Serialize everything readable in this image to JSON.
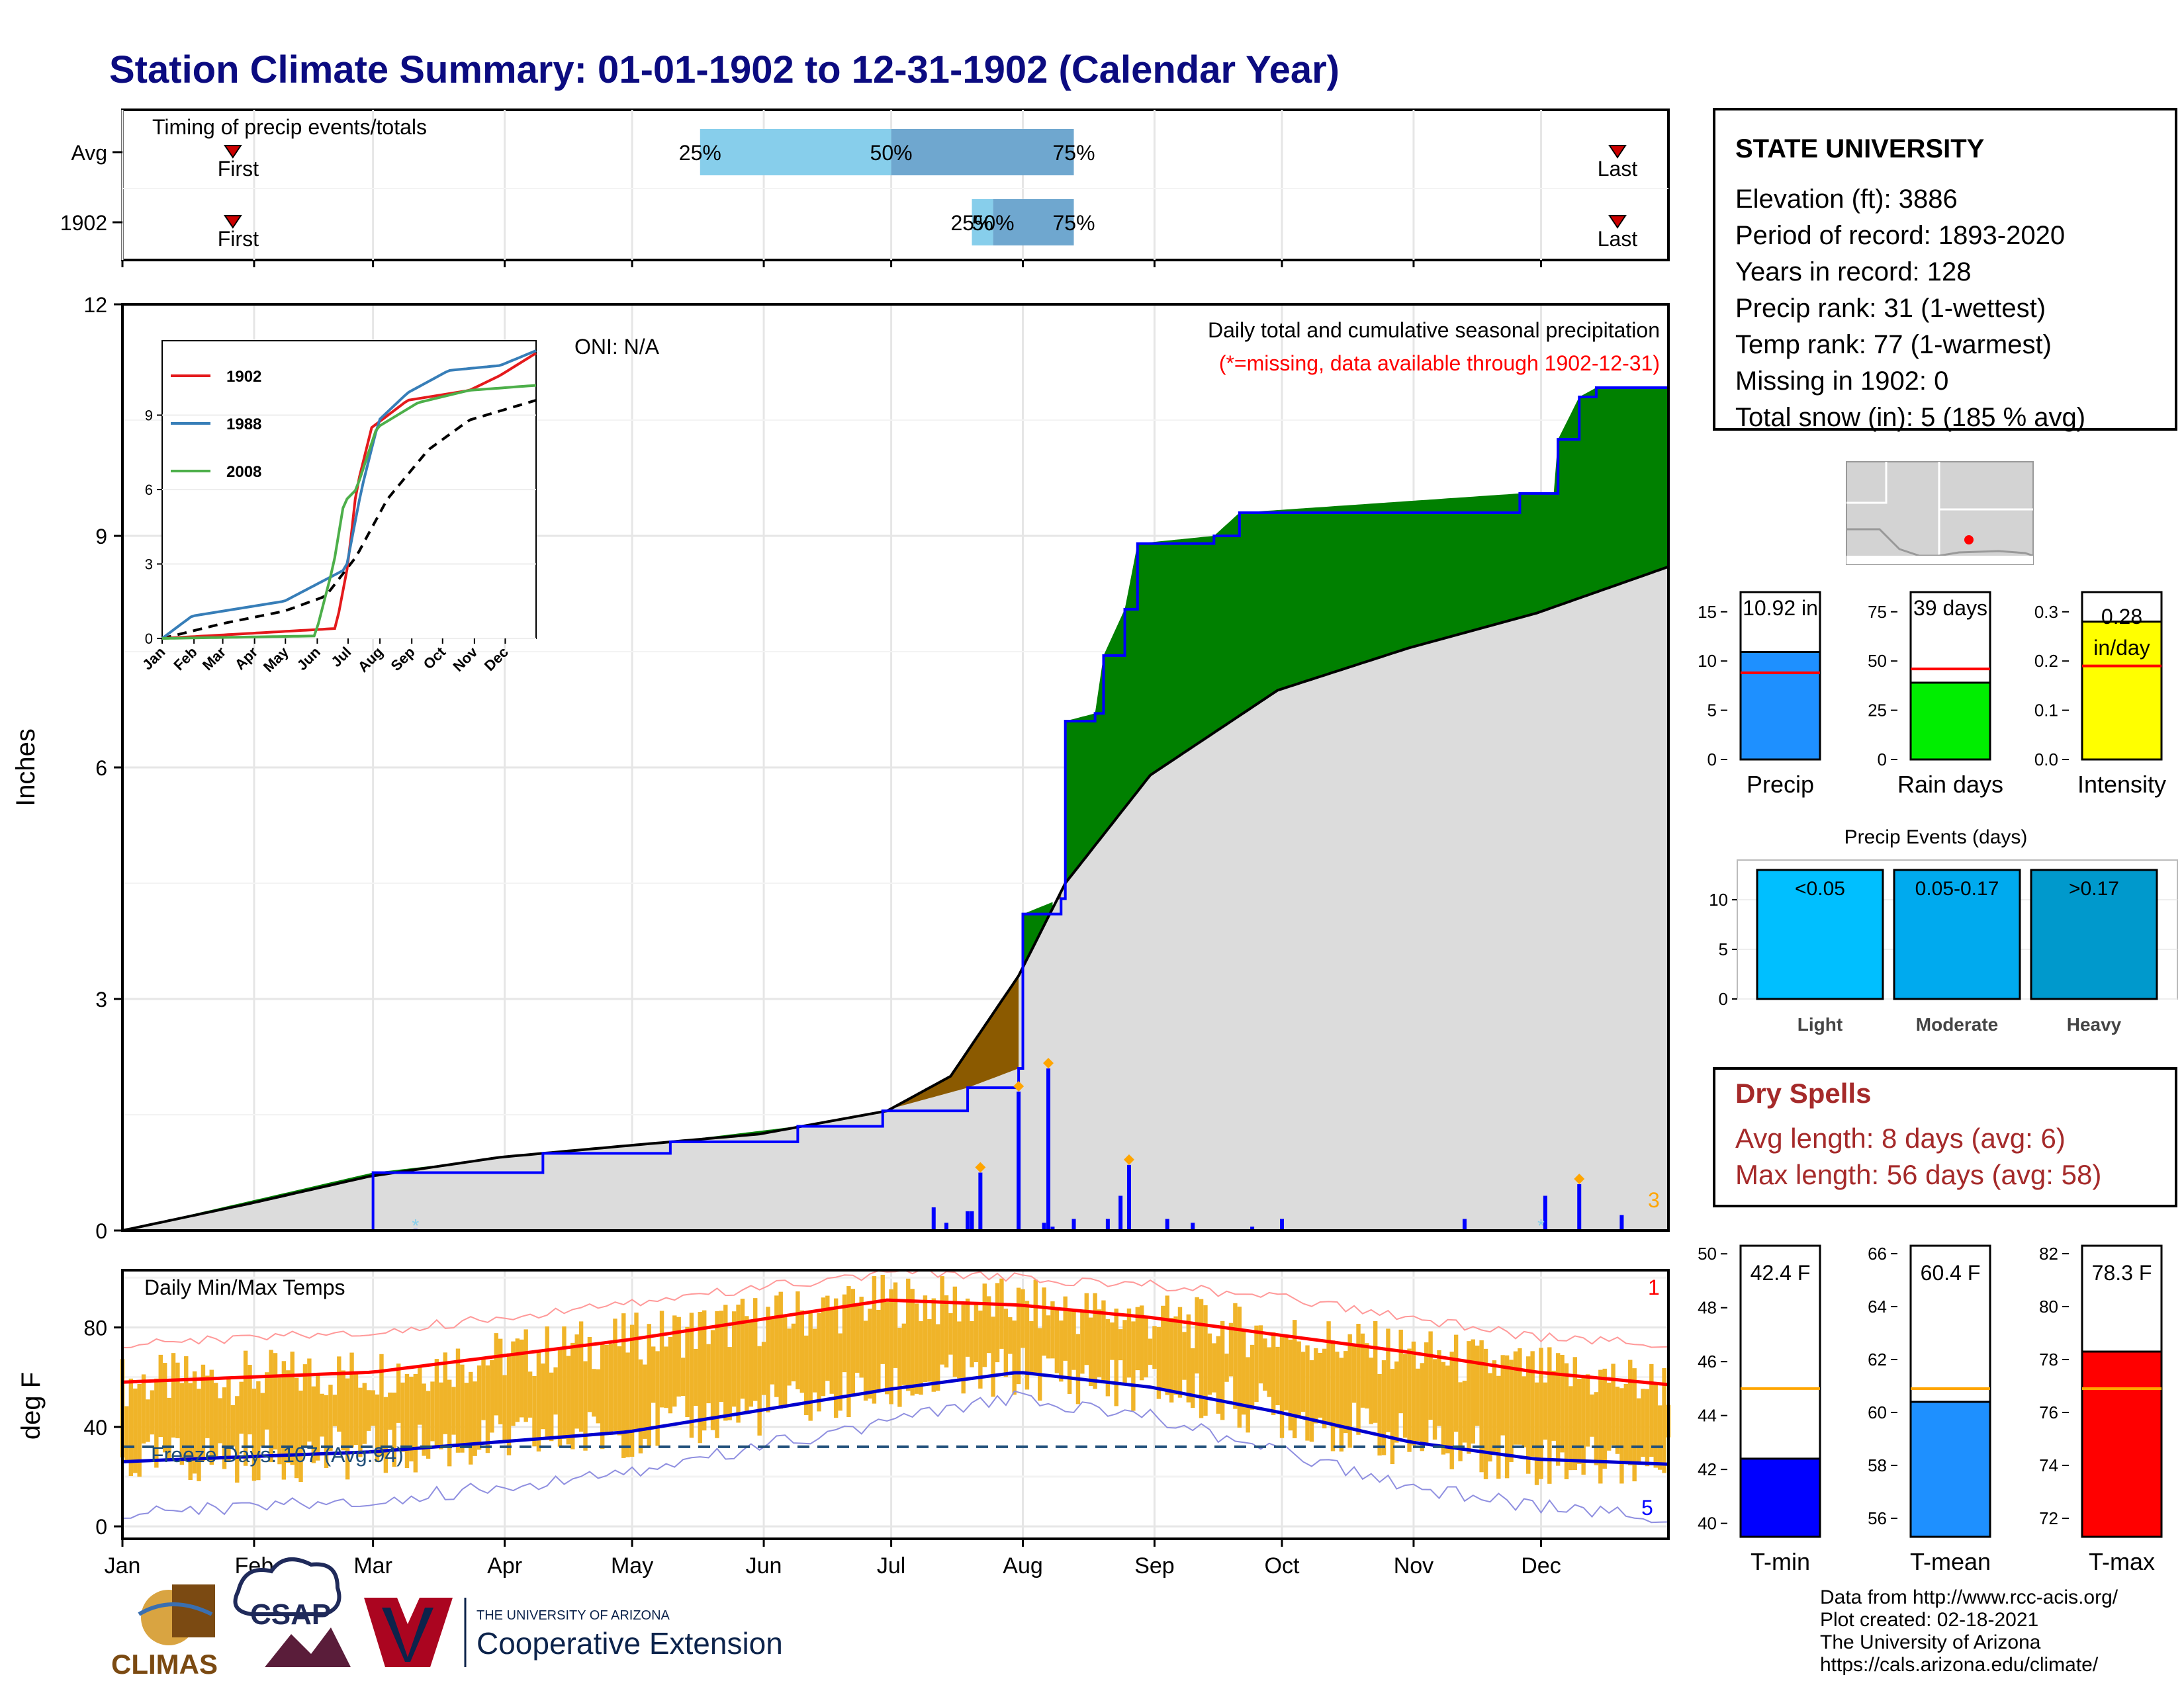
{
  "title": "Station Climate Summary: 01-01-1902 to 12-31-1902 (Calendar Year)",
  "timing": {
    "label": "Timing of precip events/totals",
    "rows": [
      {
        "name": "Avg",
        "first": "First",
        "last": "Last",
        "p25": "25%",
        "p50": "50%",
        "p75": "75%",
        "first_doy": 27,
        "q25": 137,
        "q50": 182,
        "q75": 225,
        "last_doy": 353
      },
      {
        "name": "1902",
        "first": "First",
        "last": "Last",
        "p25": "25%",
        "p50": "50%",
        "p75": "75%",
        "first_doy": 27,
        "q25": 201,
        "q50": 206,
        "q75": 225,
        "last_doy": 353
      }
    ]
  },
  "months": [
    "Jan",
    "Feb",
    "Mar",
    "Apr",
    "May",
    "Jun",
    "Jul",
    "Aug",
    "Sep",
    "Oct",
    "Nov",
    "Dec"
  ],
  "precip": {
    "ylabel": "Inches",
    "yticks": [
      "0",
      "3",
      "6",
      "9",
      "12"
    ],
    "oni": "ONI: N/A",
    "subtitle": "Daily total and cumulative seasonal precipitation",
    "missing_note": "(*=missing, data available through 1902-12-31)",
    "count_label": "3",
    "colors": {
      "dry": "#8b5a00",
      "wet": "#008000",
      "avg": "#dcdcdc",
      "line": "#0000ff",
      "marker": "#ffa500",
      "missing": "#87ceeb"
    }
  },
  "inset": {
    "yticks": [
      "0",
      "3",
      "6",
      "9"
    ],
    "months": [
      "Jan",
      "Feb",
      "Mar",
      "Apr",
      "May",
      "Jun",
      "Jul",
      "Aug",
      "Sep",
      "Oct",
      "Nov",
      "Dec"
    ],
    "legend": [
      {
        "name": "1902",
        "color": "#e41a1c"
      },
      {
        "name": "1988",
        "color": "#377eb8"
      },
      {
        "name": "2008",
        "color": "#4daf4a"
      }
    ]
  },
  "temps": {
    "label": "Daily Min/Max Temps",
    "ylabel": "deg F",
    "yticks": [
      "0",
      "40",
      "80"
    ],
    "freeze": "Freeze Days: 107 (Avg:94)",
    "max_count": "1",
    "min_count": "5",
    "colors": {
      "bars": "#f0b429",
      "max": "#ff0000",
      "min": "#0000cd"
    }
  },
  "station": {
    "name": "STATE UNIVERSITY",
    "lines": [
      "Elevation (ft): 3886",
      "Period of record: 1893-2020",
      "Years in record: 128",
      "Precip rank: 31 (1-wettest)",
      "Temp rank: 77 (1-warmest)",
      "Missing in 1902: 0",
      "Total snow (in): 5 (185 % avg)"
    ]
  },
  "summary_bars": [
    {
      "label": "Precip",
      "value_text": "10.92 in",
      "value": 10.92,
      "avg": 8.8,
      "ymax": 17,
      "yticks": [
        "0",
        "5",
        "10",
        "15"
      ],
      "tickvals": [
        0,
        5,
        10,
        15
      ],
      "color": "#1e90ff"
    },
    {
      "label": "Rain days",
      "value_text": "39 days",
      "value": 39,
      "avg": 46,
      "ymax": 85,
      "yticks": [
        "0",
        "25",
        "50",
        "75"
      ],
      "tickvals": [
        0,
        25,
        50,
        75
      ],
      "color": "#00ee00"
    },
    {
      "label": "Intensity",
      "value_text": "0.28 in/day",
      "value": 0.28,
      "avg": 0.19,
      "ymax": 0.34,
      "yticks": [
        "0.0",
        "0.1",
        "0.2",
        "0.3"
      ],
      "tickvals": [
        0,
        0.1,
        0.2,
        0.3
      ],
      "color": "#ffff00"
    }
  ],
  "events": {
    "title": "Precip Events (days)",
    "yticks": [
      "0",
      "5",
      "10"
    ],
    "bars": [
      {
        "label": "Light",
        "range": "<0.05",
        "value": 13,
        "color": "#00bfff"
      },
      {
        "label": "Moderate",
        "range": "0.05-0.17",
        "value": 13,
        "color": "#00aaee"
      },
      {
        "label": "Heavy",
        "range": ">0.17",
        "value": 13,
        "color": "#0099cc"
      }
    ]
  },
  "dry_spells": {
    "title": "Dry Spells",
    "avg": "Avg length: 8 days (avg: 6)",
    "max": "Max length: 56 days (avg: 58)"
  },
  "temp_bars": [
    {
      "label": "T-min",
      "value_text": "42.4 F",
      "value": 42.4,
      "avg": 45.0,
      "ymin": 39.5,
      "ymax": 50.3,
      "yticks": [
        "40",
        "42",
        "44",
        "46",
        "48",
        "50"
      ],
      "tickvals": [
        40,
        42,
        44,
        46,
        48,
        50
      ],
      "color": "#0000ff"
    },
    {
      "label": "T-mean",
      "value_text": "60.4 F",
      "value": 60.4,
      "avg": 60.9,
      "ymin": 55.3,
      "ymax": 66.3,
      "yticks": [
        "56",
        "58",
        "60",
        "62",
        "64",
        "66"
      ],
      "tickvals": [
        56,
        58,
        60,
        62,
        64,
        66
      ],
      "color": "#1e90ff"
    },
    {
      "label": "T-max",
      "value_text": "78.3 F",
      "value": 78.3,
      "avg": 76.9,
      "ymin": 71.3,
      "ymax": 82.3,
      "yticks": [
        "72",
        "74",
        "76",
        "78",
        "80",
        "82"
      ],
      "tickvals": [
        72,
        74,
        76,
        78,
        80,
        82
      ],
      "color": "#ff0000"
    }
  ],
  "credits": {
    "line1": "Data from http://www.rcc-acis.org/",
    "line2": "Plot created: 02-18-2021",
    "line3": "The University of Arizona",
    "line4": "https://cals.arizona.edu/climate/"
  },
  "logos": {
    "climas": "CLIMAS",
    "csap": "CSAP",
    "ua_small": "THE UNIVERSITY OF ARIZONA",
    "ua_big": "Cooperative Extension"
  },
  "chart_data": {
    "type": "area",
    "x_unit": "day of year",
    "cumulative_1902": [
      [
        1,
        0
      ],
      [
        60,
        0.75
      ],
      [
        100,
        1.0
      ],
      [
        130,
        1.15
      ],
      [
        160,
        1.35
      ],
      [
        180,
        1.55
      ],
      [
        200,
        1.85
      ],
      [
        212,
        2.1
      ],
      [
        213,
        4.1
      ],
      [
        222,
        4.3
      ],
      [
        223,
        6.6
      ],
      [
        230,
        6.7
      ],
      [
        232,
        7.45
      ],
      [
        237,
        8.05
      ],
      [
        240,
        8.9
      ],
      [
        258,
        9.0
      ],
      [
        264,
        9.3
      ],
      [
        330,
        9.55
      ],
      [
        338,
        9.55
      ],
      [
        339,
        10.25
      ],
      [
        344,
        10.8
      ],
      [
        348,
        10.92
      ],
      [
        365,
        10.92
      ]
    ],
    "cumulative_avg": [
      [
        1,
        0
      ],
      [
        31,
        0.35
      ],
      [
        59,
        0.7
      ],
      [
        90,
        0.95
      ],
      [
        120,
        1.1
      ],
      [
        151,
        1.25
      ],
      [
        181,
        1.55
      ],
      [
        196,
        2.0
      ],
      [
        212,
        3.3
      ],
      [
        223,
        4.5
      ],
      [
        243,
        5.9
      ],
      [
        273,
        7.0
      ],
      [
        304,
        7.55
      ],
      [
        334,
        8.0
      ],
      [
        365,
        8.6
      ]
    ],
    "daily_1902": [
      [
        70,
        0.02
      ],
      [
        192,
        0.3
      ],
      [
        195,
        0.1
      ],
      [
        200,
        0.25
      ],
      [
        201,
        0.25
      ],
      [
        203,
        0.75
      ],
      [
        212,
        1.8
      ],
      [
        218,
        0.1
      ],
      [
        219,
        2.1
      ],
      [
        220,
        0.05
      ],
      [
        225,
        0.15
      ],
      [
        233,
        0.15
      ],
      [
        236,
        0.45
      ],
      [
        238,
        0.85
      ],
      [
        247,
        0.15
      ],
      [
        253,
        0.1
      ],
      [
        267,
        0.05
      ],
      [
        274,
        0.15
      ],
      [
        317,
        0.15
      ],
      [
        336,
        0.45
      ],
      [
        344,
        0.6
      ],
      [
        354,
        0.2
      ]
    ],
    "inset": {
      "1902": [
        [
          1,
          0
        ],
        [
          170,
          0.4
        ],
        [
          182,
          3
        ],
        [
          190,
          6
        ],
        [
          205,
          8.5
        ],
        [
          240,
          9.6
        ],
        [
          300,
          10
        ],
        [
          330,
          10.6
        ],
        [
          365,
          11.5
        ]
      ],
      "1988": [
        [
          1,
          0
        ],
        [
          30,
          0.9
        ],
        [
          60,
          1.1
        ],
        [
          120,
          1.5
        ],
        [
          180,
          2.8
        ],
        [
          195,
          6
        ],
        [
          212,
          8.8
        ],
        [
          240,
          9.9
        ],
        [
          280,
          10.8
        ],
        [
          330,
          11.0
        ],
        [
          365,
          11.6
        ]
      ],
      "2008": [
        [
          1,
          0
        ],
        [
          150,
          0.1
        ],
        [
          168,
          3
        ],
        [
          178,
          5.5
        ],
        [
          190,
          6
        ],
        [
          210,
          8.5
        ],
        [
          250,
          9.5
        ],
        [
          300,
          10
        ],
        [
          365,
          10.2
        ]
      ],
      "avg": [
        [
          1,
          0
        ],
        [
          60,
          0.6
        ],
        [
          120,
          1.1
        ],
        [
          160,
          1.7
        ],
        [
          190,
          3.3
        ],
        [
          220,
          5.6
        ],
        [
          260,
          7.6
        ],
        [
          300,
          8.8
        ],
        [
          365,
          9.6
        ]
      ]
    },
    "tmax_avg": [
      [
        1,
        58
      ],
      [
        60,
        62
      ],
      [
        120,
        75
      ],
      [
        181,
        91
      ],
      [
        212,
        89
      ],
      [
        243,
        84
      ],
      [
        273,
        77
      ],
      [
        304,
        70
      ],
      [
        334,
        62
      ],
      [
        365,
        57
      ]
    ],
    "tmin_avg": [
      [
        1,
        26
      ],
      [
        60,
        30
      ],
      [
        120,
        38
      ],
      [
        181,
        55
      ],
      [
        212,
        62
      ],
      [
        243,
        56
      ],
      [
        273,
        46
      ],
      [
        304,
        34
      ],
      [
        334,
        27
      ],
      [
        365,
        25
      ]
    ],
    "tmax_record": [
      [
        1,
        73
      ],
      [
        60,
        78
      ],
      [
        120,
        90
      ],
      [
        181,
        102
      ],
      [
        212,
        100
      ],
      [
        243,
        97
      ],
      [
        273,
        92
      ],
      [
        304,
        84
      ],
      [
        334,
        76
      ],
      [
        365,
        73
      ]
    ],
    "tmin_record": [
      [
        1,
        5
      ],
      [
        60,
        10
      ],
      [
        120,
        22
      ],
      [
        181,
        42
      ],
      [
        212,
        52
      ],
      [
        243,
        44
      ],
      [
        273,
        30
      ],
      [
        304,
        16
      ],
      [
        334,
        8
      ],
      [
        365,
        3
      ]
    ],
    "freeze_line": 32,
    "temp_ylim": [
      -5,
      103
    ],
    "precip_ylim": [
      0,
      12
    ]
  }
}
